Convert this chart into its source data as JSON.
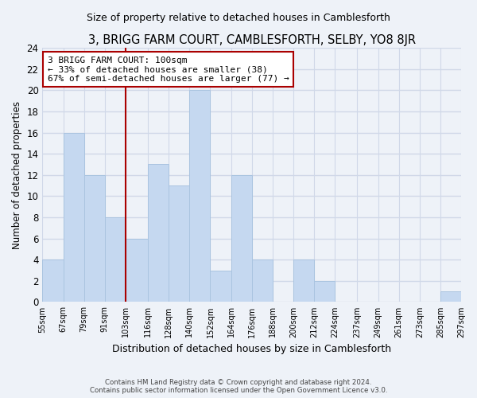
{
  "title": "3, BRIGG FARM COURT, CAMBLESFORTH, SELBY, YO8 8JR",
  "subtitle": "Size of property relative to detached houses in Camblesforth",
  "xlabel": "Distribution of detached houses by size in Camblesforth",
  "ylabel": "Number of detached properties",
  "bar_edges": [
    55,
    67,
    79,
    91,
    103,
    116,
    128,
    140,
    152,
    164,
    176,
    188,
    200,
    212,
    224,
    237,
    249,
    261,
    273,
    285,
    297
  ],
  "bar_heights": [
    4,
    16,
    12,
    8,
    6,
    13,
    11,
    20,
    3,
    12,
    4,
    0,
    4,
    2,
    0,
    0,
    0,
    0,
    0,
    1
  ],
  "tick_labels": [
    "55sqm",
    "67sqm",
    "79sqm",
    "91sqm",
    "103sqm",
    "116sqm",
    "128sqm",
    "140sqm",
    "152sqm",
    "164sqm",
    "176sqm",
    "188sqm",
    "200sqm",
    "212sqm",
    "224sqm",
    "237sqm",
    "249sqm",
    "261sqm",
    "273sqm",
    "285sqm",
    "297sqm"
  ],
  "bar_color": "#c5d8f0",
  "bar_edge_color": "#aac4e0",
  "property_line_x": 103,
  "property_line_color": "#aa0000",
  "annotation_line1": "3 BRIGG FARM COURT: 100sqm",
  "annotation_line2": "← 33% of detached houses are smaller (38)",
  "annotation_line3": "67% of semi-detached houses are larger (77) →",
  "annotation_box_color": "#ffffff",
  "annotation_box_edge": "#aa0000",
  "ylim": [
    0,
    24
  ],
  "yticks": [
    0,
    2,
    4,
    6,
    8,
    10,
    12,
    14,
    16,
    18,
    20,
    22,
    24
  ],
  "bg_color": "#eef2f8",
  "grid_color": "#d0d8e8",
  "footer_line1": "Contains HM Land Registry data © Crown copyright and database right 2024.",
  "footer_line2": "Contains public sector information licensed under the Open Government Licence v3.0."
}
